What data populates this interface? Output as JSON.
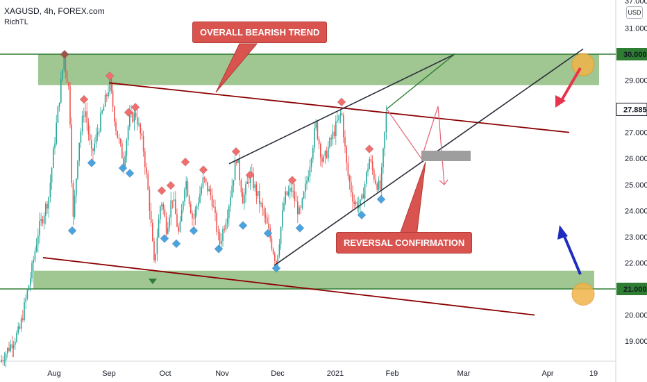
{
  "header": {
    "symbol_line": "XAGUSD, 4h, FOREX.com",
    "indicator": "RichTL"
  },
  "price_axis": {
    "currency": "USD",
    "ticks": [
      "37.0000",
      "31.000",
      "29.000",
      "27.000",
      "26.000",
      "25.000",
      "24.000",
      "23.000",
      "22.000",
      "20.000",
      "19.000"
    ],
    "highlight_labels": [
      {
        "text": "30.000",
        "value": 30.0,
        "color": "#2e7d32"
      },
      {
        "text": "27.885",
        "value": 27.885,
        "color": "#ffffff"
      },
      {
        "text": "21.000",
        "value": 21.0,
        "color": "#2e7d32"
      }
    ]
  },
  "time_axis": {
    "labels": [
      "Aug",
      "Sep",
      "Oct",
      "Nov",
      "Dec",
      "2021",
      "Feb",
      "Mar",
      "Apr",
      "19"
    ]
  },
  "annotations": {
    "top_callout": "OVERALL BEARISH TREND",
    "bottom_callout": "REVERSAL CONFIRMATION"
  },
  "colors": {
    "bull": "#26a69a",
    "bear": "#ef5350",
    "zone": "#8fbc7f",
    "zone_line": "#2e7d32",
    "trendline": "#8b0000",
    "channel": "#2a2e39",
    "callout": "#d9534f",
    "pivot_high": "#ef6f6f",
    "pivot_low": "#4aa3df",
    "circle": "#f2b54a",
    "arrow_down": "#e8334d",
    "arrow_up": "#1f2dbf"
  },
  "chart_data": {
    "type": "candlestick",
    "symbol": "XAGUSD",
    "timeframe": "4h",
    "price_range": [
      18.2,
      33.0
    ],
    "support_zone": [
      21.0,
      21.7
    ],
    "resistance_zone": [
      29.4,
      30.0
    ],
    "current_price": 27.885,
    "levels": [
      30.0,
      21.0
    ],
    "path": [
      {
        "x": 0,
        "y": 18.2
      },
      {
        "x": 28,
        "y": 19.4
      },
      {
        "x": 45,
        "y": 21.6
      },
      {
        "x": 55,
        "y": 23.2
      },
      {
        "x": 70,
        "y": 24.5
      },
      {
        "x": 80,
        "y": 27.0
      },
      {
        "x": 92,
        "y": 29.9
      },
      {
        "x": 100,
        "y": 28.5
      },
      {
        "x": 105,
        "y": 23.5
      },
      {
        "x": 113,
        "y": 26.5
      },
      {
        "x": 122,
        "y": 28.0
      },
      {
        "x": 132,
        "y": 26.1
      },
      {
        "x": 145,
        "y": 27.5
      },
      {
        "x": 158,
        "y": 28.9
      },
      {
        "x": 168,
        "y": 27.0
      },
      {
        "x": 178,
        "y": 25.9
      },
      {
        "x": 186,
        "y": 27.5
      },
      {
        "x": 196,
        "y": 27.7
      },
      {
        "x": 207,
        "y": 26.3
      },
      {
        "x": 215,
        "y": 24.3
      },
      {
        "x": 222,
        "y": 21.9
      },
      {
        "x": 232,
        "y": 24.5
      },
      {
        "x": 240,
        "y": 23.3
      },
      {
        "x": 248,
        "y": 24.6
      },
      {
        "x": 258,
        "y": 23.0
      },
      {
        "x": 267,
        "y": 25.3
      },
      {
        "x": 278,
        "y": 23.6
      },
      {
        "x": 293,
        "y": 25.2
      },
      {
        "x": 305,
        "y": 24.5
      },
      {
        "x": 316,
        "y": 22.7
      },
      {
        "x": 328,
        "y": 24.0
      },
      {
        "x": 341,
        "y": 26.1
      },
      {
        "x": 350,
        "y": 24.4
      },
      {
        "x": 360,
        "y": 25.4
      },
      {
        "x": 372,
        "y": 24.5
      },
      {
        "x": 385,
        "y": 23.4
      },
      {
        "x": 398,
        "y": 22.0
      },
      {
        "x": 410,
        "y": 24.5
      },
      {
        "x": 420,
        "y": 24.8
      },
      {
        "x": 432,
        "y": 23.8
      },
      {
        "x": 443,
        "y": 25.3
      },
      {
        "x": 455,
        "y": 27.3
      },
      {
        "x": 465,
        "y": 25.8
      },
      {
        "x": 478,
        "y": 26.8
      },
      {
        "x": 492,
        "y": 27.8
      },
      {
        "x": 500,
        "y": 25.5
      },
      {
        "x": 510,
        "y": 24.3
      },
      {
        "x": 520,
        "y": 24.2
      },
      {
        "x": 532,
        "y": 26.0
      },
      {
        "x": 540,
        "y": 25.2
      },
      {
        "x": 548,
        "y": 24.8
      },
      {
        "x": 557,
        "y": 27.9
      }
    ],
    "pivot_highs": [
      {
        "x": 121,
        "y": 28.0
      },
      {
        "x": 158,
        "y": 28.9
      },
      {
        "x": 185,
        "y": 27.5
      },
      {
        "x": 195,
        "y": 27.7
      },
      {
        "x": 233,
        "y": 24.5
      },
      {
        "x": 246,
        "y": 24.7
      },
      {
        "x": 267,
        "y": 25.6
      },
      {
        "x": 293,
        "y": 25.3
      },
      {
        "x": 340,
        "y": 26.0
      },
      {
        "x": 360,
        "y": 25.1
      },
      {
        "x": 421,
        "y": 24.9
      },
      {
        "x": 492,
        "y": 27.9
      },
      {
        "x": 532,
        "y": 26.1
      }
    ],
    "pivot_lows": [
      {
        "x": 104,
        "y": 23.5
      },
      {
        "x": 132,
        "y": 26.1
      },
      {
        "x": 177,
        "y": 25.9
      },
      {
        "x": 187,
        "y": 25.7
      },
      {
        "x": 237,
        "y": 23.2
      },
      {
        "x": 254,
        "y": 23.0
      },
      {
        "x": 279,
        "y": 23.5
      },
      {
        "x": 315,
        "y": 22.8
      },
      {
        "x": 350,
        "y": 23.7
      },
      {
        "x": 386,
        "y": 23.4
      },
      {
        "x": 432,
        "y": 23.6
      },
      {
        "x": 521,
        "y": 24.1
      },
      {
        "x": 549,
        "y": 24.7
      }
    ],
    "marked_extremes": [
      {
        "kind": "high",
        "x": 93,
        "y": 30.1
      },
      {
        "kind": "low",
        "x": 220,
        "y": 21.5
      },
      {
        "kind": "low",
        "x": 398,
        "y": 21.9
      }
    ],
    "trendlines": [
      {
        "name": "bearish",
        "x1": 157,
        "y1": 28.9,
        "x2": 820,
        "y2": 27.0
      },
      {
        "name": "lower",
        "x1": 62,
        "y1": 22.2,
        "x2": 770,
        "y2": 20.0
      },
      {
        "name": "channel_top",
        "x1": 330,
        "y1": 25.8,
        "x2": 655,
        "y2": 30.0
      },
      {
        "name": "channel_bottom",
        "x1": 395,
        "y1": 21.9,
        "x2": 840,
        "y2": 30.2
      },
      {
        "name": "zone_green_line",
        "x1": 557,
        "y1": 27.9,
        "x2": 655,
        "y2": 30.0
      }
    ],
    "projection": [
      {
        "x": 557,
        "y": 27.9
      },
      {
        "x": 607,
        "y": 26.0
      },
      {
        "x": 631,
        "y": 28.0
      },
      {
        "x": 640,
        "y": 25.0
      }
    ],
    "reversal_box": {
      "x1": 607,
      "x2": 678,
      "y1": 25.9,
      "y2": 26.3
    }
  }
}
